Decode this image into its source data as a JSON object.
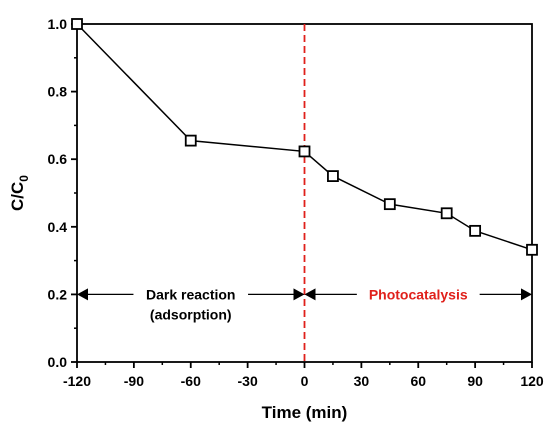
{
  "chart_data": {
    "type": "line",
    "xlabel": "Time (min)",
    "ylabel_main": "C/C",
    "ylabel_sub": "0",
    "xlim": [
      -120,
      120
    ],
    "ylim": [
      0.0,
      1.0
    ],
    "xticks": [
      "-120",
      "-90",
      "-60",
      "-30",
      "0",
      "30",
      "60",
      "90",
      "120"
    ],
    "yticks": [
      "0.0",
      "0.2",
      "0.4",
      "0.6",
      "0.8",
      "1.0"
    ],
    "grid": false,
    "series": [
      {
        "x": [
          -120,
          -60,
          0,
          15,
          45,
          75,
          90,
          120
        ],
        "y": [
          1.0,
          0.655,
          0.623,
          0.55,
          0.467,
          0.44,
          0.388,
          0.332
        ],
        "marker": "open-square",
        "color": "#000000"
      }
    ],
    "divider": {
      "x": 0,
      "color": "#e0201b",
      "style": "dashed"
    },
    "annotations": [
      {
        "lines": [
          "Dark reaction",
          "(adsorption)"
        ],
        "x_from": -120,
        "x_to": 0,
        "y": 0.2,
        "color": "#000000"
      },
      {
        "lines": [
          "Photocatalysis"
        ],
        "x_from": 0,
        "x_to": 120,
        "y": 0.2,
        "color": "#e0201b"
      }
    ]
  }
}
